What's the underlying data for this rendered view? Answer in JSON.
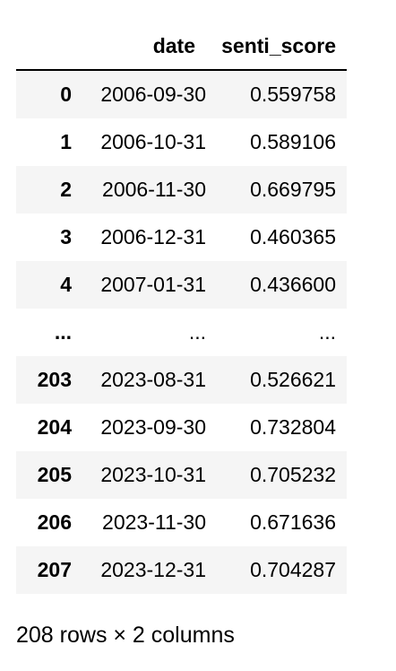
{
  "table": {
    "columns": [
      "date",
      "senti_score"
    ],
    "rows": [
      {
        "index": "0",
        "date": "2006-09-30",
        "senti_score": "0.559758"
      },
      {
        "index": "1",
        "date": "2006-10-31",
        "senti_score": "0.589106"
      },
      {
        "index": "2",
        "date": "2006-11-30",
        "senti_score": "0.669795"
      },
      {
        "index": "3",
        "date": "2006-12-31",
        "senti_score": "0.460365"
      },
      {
        "index": "4",
        "date": "2007-01-31",
        "senti_score": "0.436600"
      },
      {
        "index": "...",
        "date": "...",
        "senti_score": "..."
      },
      {
        "index": "203",
        "date": "2023-08-31",
        "senti_score": "0.526621"
      },
      {
        "index": "204",
        "date": "2023-09-30",
        "senti_score": "0.732804"
      },
      {
        "index": "205",
        "date": "2023-10-31",
        "senti_score": "0.705232"
      },
      {
        "index": "206",
        "date": "2023-11-30",
        "senti_score": "0.671636"
      },
      {
        "index": "207",
        "date": "2023-12-31",
        "senti_score": "0.704287"
      }
    ]
  },
  "shape_text": "208 rows × 2 columns"
}
